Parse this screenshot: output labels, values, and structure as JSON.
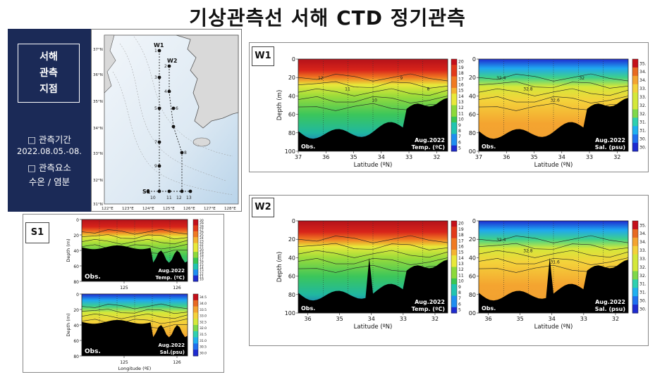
{
  "title": "기상관측선 서해 CTD 정기관측",
  "left_panel": {
    "station_title": [
      "서해",
      "관측",
      "지점"
    ],
    "period_label": "□ 관측기간",
    "period_value": "2022.08.05.-08.",
    "elements_label": "□ 관측요소",
    "elements_value": "수온 / 염분"
  },
  "map": {
    "lat_labels": [
      "37°N",
      "36°N",
      "35°N",
      "34°N",
      "33°N",
      "32°N",
      "31°N"
    ],
    "lon_labels": [
      "122°E",
      "123°E",
      "124°E",
      "125°E",
      "126°E",
      "127°E",
      "128°E"
    ],
    "line_labels": [
      "W1",
      "W2",
      "S1"
    ],
    "station_numbers": [
      "1",
      "2",
      "3",
      "4",
      "5",
      "6",
      "7",
      "8",
      "9",
      "10",
      "11",
      "12",
      "13"
    ]
  },
  "labels": {
    "w1": "W1",
    "w2": "W2",
    "s1": "S1"
  },
  "chart_data": [
    {
      "type": "heatmap",
      "id": "W1-temperature",
      "ylabel": "Depth (m)",
      "xlabel": "Latitude (ºN)",
      "xticks": [
        "37",
        "36",
        "35",
        "34",
        "33",
        "32"
      ],
      "yticks": [
        "0",
        "20",
        "40",
        "60",
        "80",
        "100"
      ],
      "ylim": [
        100,
        0
      ],
      "xlim": [
        37,
        31.6
      ],
      "annotations": [
        "Obs.",
        "Aug.2022",
        "Temp. (ºC)"
      ],
      "colorbar": {
        "ticks": [
          "20",
          "19",
          "18",
          "17",
          "16",
          "15",
          "14",
          "13",
          "12",
          "11",
          "10",
          "9",
          "8",
          "7",
          "6",
          "5"
        ],
        "range": [
          5,
          20
        ]
      },
      "contour_labels": [
        "12",
        "11",
        "10",
        "9",
        "8"
      ]
    },
    {
      "type": "heatmap",
      "id": "W1-salinity",
      "ylabel": "",
      "xlabel": "Latitude (ºN)",
      "xticks": [
        "37",
        "36",
        "35",
        "34",
        "33",
        "32"
      ],
      "yticks": [
        "0",
        "20",
        "40",
        "60",
        "80",
        "100"
      ],
      "ylim": [
        100,
        0
      ],
      "xlim": [
        37,
        31.6
      ],
      "annotations": [
        "Obs.",
        "Aug.2022",
        "Sal. (psu)"
      ],
      "colorbar": {
        "ticks": [
          "35.0",
          "34.5",
          "34.0",
          "33.5",
          "33.0",
          "32.5",
          "32.0",
          "31.5",
          "31.0",
          "30.5",
          "30.0"
        ],
        "range": [
          30.0,
          35.0
        ]
      },
      "contour_labels": [
        "32.4",
        "32.8",
        "32.6",
        "32"
      ]
    },
    {
      "type": "heatmap",
      "id": "W2-temperature",
      "ylabel": "Depth (m)",
      "xlabel": "Latitude (ºN)",
      "xticks": [
        "36",
        "35",
        "34",
        "33",
        "32"
      ],
      "yticks": [
        "0",
        "20",
        "40",
        "60",
        "80",
        "100"
      ],
      "ylim": [
        100,
        0
      ],
      "xlim": [
        36.3,
        31.6
      ],
      "annotations": [
        "Obs.",
        "Aug.2022",
        "Temp. (ºC)"
      ],
      "colorbar": {
        "ticks": [
          "20",
          "19",
          "18",
          "17",
          "16",
          "15",
          "14",
          "13",
          "12",
          "11",
          "10",
          "9",
          "8",
          "7",
          "6",
          "5"
        ],
        "range": [
          5,
          20
        ]
      },
      "contour_labels": []
    },
    {
      "type": "heatmap",
      "id": "W2-salinity",
      "ylabel": "",
      "xlabel": "Latitude (ºN)",
      "xticks": [
        "36",
        "35",
        "34",
        "33",
        "32"
      ],
      "yticks": [
        "0",
        "20",
        "40",
        "60",
        "80",
        "100"
      ],
      "ylim": [
        100,
        0
      ],
      "xlim": [
        36.3,
        31.6
      ],
      "annotations": [
        "Obs.",
        "Aug.2022",
        "Sal. (psu)"
      ],
      "colorbar": {
        "ticks": [
          "35.0",
          "34.5",
          "34.0",
          "33.5",
          "33.0",
          "32.5",
          "32.0",
          "31.5",
          "31.0",
          "30.5",
          "30.0"
        ],
        "range": [
          30.0,
          35.0
        ]
      },
      "contour_labels": [
        "32.4",
        "32.8",
        "31.6"
      ]
    },
    {
      "type": "heatmap",
      "id": "S1-temperature",
      "ylabel": "Depth (m)",
      "xlabel": "",
      "xticks": [
        "125",
        "126"
      ],
      "yticks": [
        "0",
        "20",
        "40",
        "60",
        "80"
      ],
      "ylim": [
        80,
        0
      ],
      "xlim": [
        124.2,
        126.2
      ],
      "annotations": [
        "Obs.",
        "Aug.2022",
        "Temp. (ºC)"
      ],
      "colorbar": {
        "ticks": [
          "30",
          "29",
          "28",
          "27",
          "26",
          "25",
          "24",
          "23",
          "22",
          "21",
          "20",
          "19",
          "18",
          "17",
          "16",
          "15",
          "14",
          "13",
          "12",
          "11",
          "10"
        ],
        "range": [
          10,
          30
        ]
      },
      "contour_labels": []
    },
    {
      "type": "heatmap",
      "id": "S1-salinity",
      "ylabel": "Depth (m)",
      "xlabel": "Longitude (ºE)",
      "xticks": [
        "125",
        "126"
      ],
      "yticks": [
        "0",
        "20",
        "40",
        "60",
        "80"
      ],
      "ylim": [
        80,
        0
      ],
      "xlim": [
        124.2,
        126.2
      ],
      "annotations": [
        "Obs.",
        "Aug.2022",
        "Sal.(psu)"
      ],
      "colorbar": {
        "ticks": [
          "34.5",
          "34.0",
          "33.5",
          "33.0",
          "32.5",
          "32.0",
          "31.5",
          "31.0",
          "30.5",
          "30.0"
        ],
        "range": [
          30.0,
          34.5
        ]
      },
      "contour_labels": []
    }
  ]
}
